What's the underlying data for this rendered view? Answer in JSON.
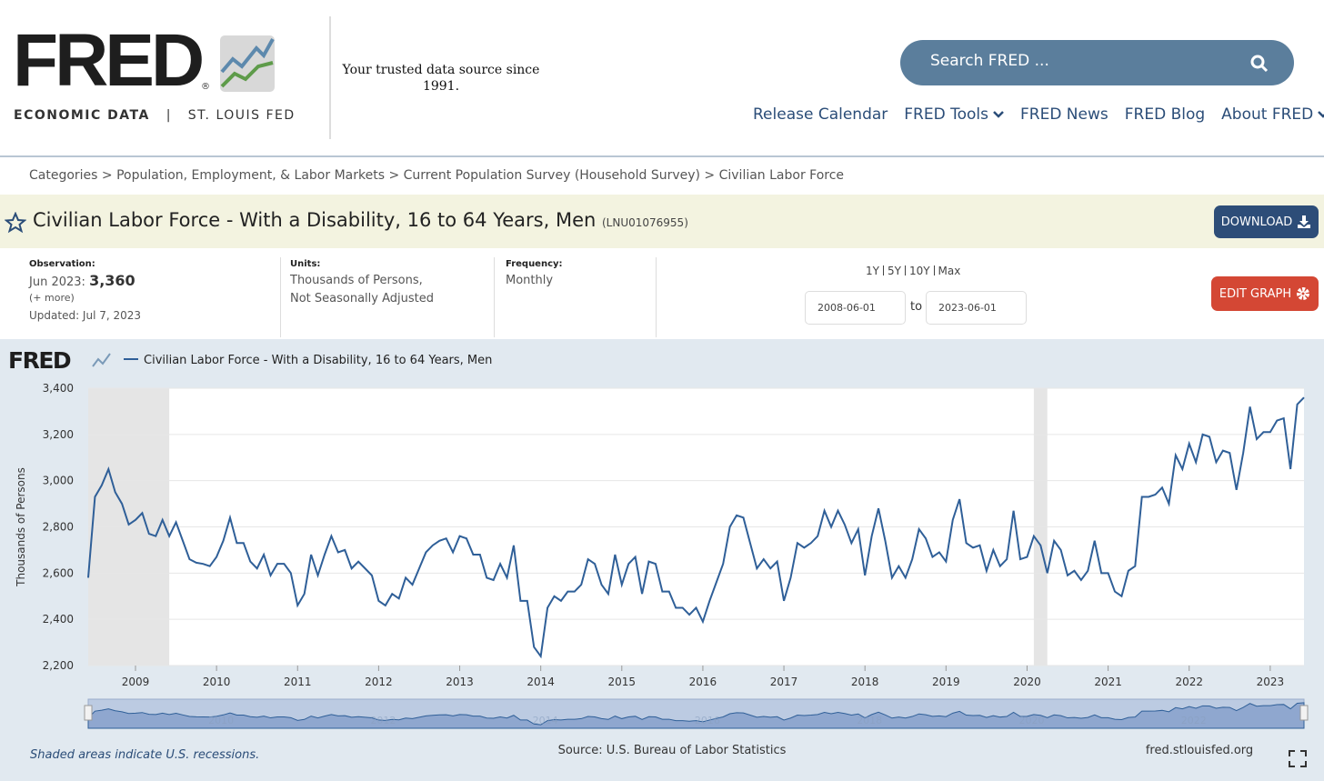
{
  "header": {
    "logo": "FRED",
    "registered": "®",
    "subtitle_left": "ECONOMIC DATA",
    "subtitle_sep": "|",
    "subtitle_right": "ST. LOUIS FED",
    "tagline": "Your trusted data source since 1991.",
    "search_placeholder": "Search FRED ...",
    "nav": [
      "Release Calendar",
      "FRED Tools",
      "FRED News",
      "FRED Blog",
      "About FRED"
    ]
  },
  "breadcrumb": "Categories > Population, Employment, & Labor Markets > Current Population Survey (Household Survey) > Civilian Labor Force",
  "series_title": "Civilian Labor Force - With a Disability, 16 to 64 Years, Men",
  "series_id": "(LNU01076955)",
  "buttons": {
    "download": "DOWNLOAD",
    "edit": "EDIT GRAPH"
  },
  "meta": {
    "observation_label": "Observation:",
    "observation_date": "Jun 2023:",
    "observation_value": "3,360",
    "more": "(+ more)",
    "updated": "Updated: Jul 7, 2023",
    "units_label": "Units:",
    "units": [
      "Thousands of Persons,",
      "Not Seasonally Adjusted"
    ],
    "frequency_label": "Frequency:",
    "frequency": "Monthly",
    "ranges": [
      "1Y",
      "5Y",
      "10Y",
      "Max"
    ],
    "to": "to"
  },
  "chart_data": {
    "type": "line",
    "logo": "FRED",
    "ylabel": "Thousands of Persons",
    "xlim": [
      "2008-06-01",
      "2023-06-01"
    ],
    "xticks": [
      2009,
      2010,
      2011,
      2012,
      2013,
      2014,
      2015,
      2016,
      2017,
      2018,
      2019,
      2020,
      2021,
      2022,
      2023
    ],
    "ylim": [
      2200,
      3400
    ],
    "yticks": [
      {
        "value": 2200,
        "label": "2,200"
      },
      {
        "value": 2400,
        "label": "2,400"
      },
      {
        "value": 2600,
        "label": "2,600"
      },
      {
        "value": 2800,
        "label": "2,800"
      },
      {
        "value": 3000,
        "label": "3,000"
      },
      {
        "value": 3200,
        "label": "3,200"
      },
      {
        "value": 3400,
        "label": "3,400"
      }
    ],
    "grid": true,
    "recessions": [
      [
        "2008-06-01",
        "2009-06-01"
      ],
      [
        "2020-02-01",
        "2020-04-01"
      ]
    ],
    "series": [
      {
        "name": "Civilian Labor Force - With a Disability, 16 to 64 Years, Men",
        "color": "#2f5f98",
        "values": [
          2580,
          2930,
          2980,
          3050,
          2950,
          2900,
          2810,
          2830,
          2860,
          2770,
          2760,
          2830,
          2760,
          2820,
          2740,
          2660,
          2645,
          2640,
          2630,
          2670,
          2740,
          2840,
          2730,
          2730,
          2650,
          2620,
          2680,
          2590,
          2640,
          2640,
          2600,
          2460,
          2510,
          2680,
          2590,
          2680,
          2760,
          2690,
          2700,
          2620,
          2650,
          2620,
          2590,
          2480,
          2460,
          2510,
          2490,
          2580,
          2550,
          2620,
          2690,
          2720,
          2740,
          2750,
          2690,
          2760,
          2750,
          2680,
          2680,
          2580,
          2570,
          2640,
          2580,
          2720,
          2480,
          2480,
          2280,
          2240,
          2450,
          2500,
          2480,
          2520,
          2520,
          2550,
          2660,
          2640,
          2550,
          2510,
          2680,
          2550,
          2640,
          2670,
          2510,
          2650,
          2640,
          2520,
          2520,
          2450,
          2450,
          2420,
          2450,
          2390,
          2480,
          2560,
          2640,
          2800,
          2850,
          2840,
          2730,
          2620,
          2660,
          2620,
          2650,
          2480,
          2580,
          2730,
          2710,
          2730,
          2760,
          2870,
          2800,
          2870,
          2810,
          2730,
          2790,
          2590,
          2760,
          2880,
          2740,
          2580,
          2630,
          2580,
          2660,
          2790,
          2750,
          2670,
          2690,
          2650,
          2830,
          2920,
          2730,
          2710,
          2720,
          2610,
          2700,
          2630,
          2660,
          2870,
          2660,
          2670,
          2760,
          2720,
          2600,
          2740,
          2700,
          2590,
          2610,
          2570,
          2610,
          2740,
          2600,
          2600,
          2520,
          2500,
          2610,
          2630,
          2930,
          2930,
          2940,
          2970,
          2900,
          3110,
          3050,
          3160,
          3080,
          3200,
          3190,
          3080,
          3130,
          3120,
          2960,
          3120,
          3320,
          3180,
          3210,
          3210,
          3260,
          3270,
          3050,
          3330,
          3360
        ]
      }
    ],
    "footer_left": "Shaded areas indicate U.S. recessions.",
    "source": "Source: U.S. Bureau of Labor Statistics",
    "site": "fred.stlouisfed.org"
  }
}
